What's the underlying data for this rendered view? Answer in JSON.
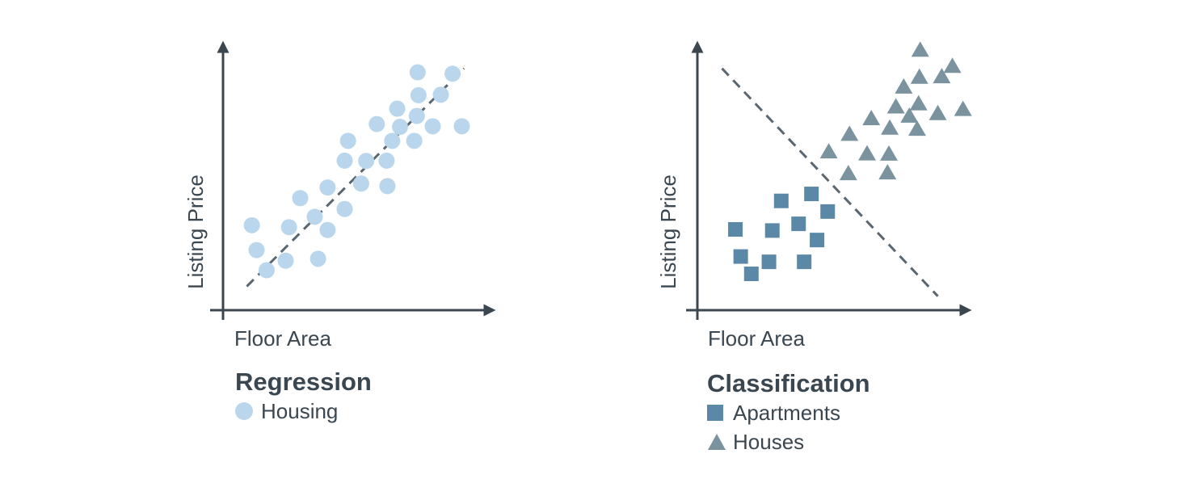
{
  "colors": {
    "axis": "#3b4750",
    "dashed_line": "#5a6670",
    "housing": "#b9d6ec",
    "apartments": "#5a88a6",
    "houses": "#7a939f"
  },
  "chart_data": [
    {
      "type": "scatter",
      "title": "Regression",
      "xlabel": "Floor Area",
      "ylabel": "Listing Price",
      "xlim": [
        0,
        10
      ],
      "ylim": [
        0,
        10
      ],
      "ticks": false,
      "grid": false,
      "legend": "below",
      "series": [
        {
          "name": "Housing",
          "marker": "circle",
          "color": "#b9d6ec",
          "points": [
            [
              1.03,
              3.04
            ],
            [
              1.2,
              2.15
            ],
            [
              1.56,
              1.43
            ],
            [
              2.24,
              1.77
            ],
            [
              2.36,
              2.97
            ],
            [
              2.76,
              4.01
            ],
            [
              3.28,
              3.34
            ],
            [
              3.4,
              1.84
            ],
            [
              3.74,
              4.39
            ],
            [
              3.74,
              2.87
            ],
            [
              4.35,
              3.62
            ],
            [
              4.35,
              5.35
            ],
            [
              4.47,
              6.06
            ],
            [
              4.94,
              4.53
            ],
            [
              5.12,
              5.34
            ],
            [
              5.5,
              6.66
            ],
            [
              5.88,
              4.44
            ],
            [
              5.85,
              5.35
            ],
            [
              6.05,
              6.06
            ],
            [
              6.23,
              7.21
            ],
            [
              6.33,
              6.56
            ],
            [
              6.84,
              6.06
            ],
            [
              6.93,
              6.95
            ],
            [
              6.96,
              8.51
            ],
            [
              6.99,
              7.69
            ],
            [
              7.5,
              6.58
            ],
            [
              7.79,
              7.71
            ],
            [
              8.21,
              8.46
            ],
            [
              8.54,
              6.58
            ]
          ]
        }
      ],
      "line": {
        "style": "dashed",
        "points": [
          [
            0.85,
            0.85
          ],
          [
            8.62,
            8.65
          ]
        ]
      }
    },
    {
      "type": "scatter",
      "title": "Classification",
      "xlabel": "Floor Area",
      "ylabel": "Listing Price",
      "xlim": [
        0,
        10
      ],
      "ylim": [
        0,
        10
      ],
      "ticks": false,
      "grid": false,
      "legend": "below",
      "series": [
        {
          "name": "Apartments",
          "marker": "square",
          "color": "#5a88a6",
          "points": [
            [
              1.36,
              2.89
            ],
            [
              1.55,
              1.92
            ],
            [
              1.93,
              1.3
            ],
            [
              2.56,
              1.73
            ],
            [
              2.68,
              2.85
            ],
            [
              3.0,
              3.91
            ],
            [
              3.62,
              3.09
            ],
            [
              3.82,
              1.73
            ],
            [
              4.08,
              4.16
            ],
            [
              4.28,
              2.51
            ],
            [
              4.66,
              3.53
            ]
          ]
        },
        {
          "name": "Houses",
          "marker": "triangle",
          "color": "#7a939f",
          "points": [
            [
              4.7,
              5.66
            ],
            [
              5.4,
              4.88
            ],
            [
              5.44,
              6.29
            ],
            [
              6.07,
              5.59
            ],
            [
              6.22,
              6.85
            ],
            [
              6.8,
              4.91
            ],
            [
              6.85,
              5.58
            ],
            [
              6.88,
              6.51
            ],
            [
              7.1,
              7.27
            ],
            [
              7.38,
              7.98
            ],
            [
              7.58,
              6.94
            ],
            [
              7.86,
              6.47
            ],
            [
              7.91,
              7.38
            ],
            [
              7.94,
              8.33
            ],
            [
              7.97,
              9.3
            ],
            [
              8.6,
              7.03
            ],
            [
              8.74,
              8.35
            ],
            [
              9.12,
              8.72
            ],
            [
              9.5,
              7.18
            ]
          ]
        }
      ],
      "line": {
        "style": "dashed",
        "points": [
          [
            0.88,
            8.65
          ],
          [
            8.6,
            0.5
          ]
        ]
      }
    }
  ]
}
